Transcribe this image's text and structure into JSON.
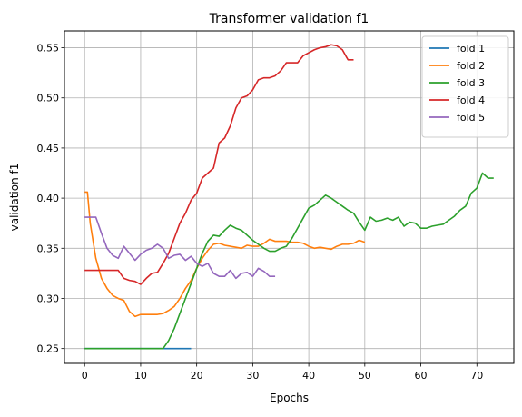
{
  "chart_data": {
    "type": "line",
    "title": "Transformer validation f1",
    "xlabel": "Epochs",
    "ylabel": "validation f1",
    "xlim": [
      -3.6,
      76.6
    ],
    "ylim": [
      0.2352,
      0.5668
    ],
    "x_ticks": [
      0,
      10,
      20,
      30,
      40,
      50,
      60,
      70
    ],
    "y_ticks": [
      0.25,
      0.3,
      0.35,
      0.4,
      0.45,
      0.5,
      0.55
    ],
    "y_tick_labels": [
      "0.25",
      "0.30",
      "0.35",
      "0.40",
      "0.45",
      "0.50",
      "0.55"
    ],
    "grid": true,
    "legend_position": "top-right",
    "series": [
      {
        "name": "fold 1",
        "color": "#1f77b4",
        "points": [
          [
            0,
            0.25
          ],
          [
            2,
            0.25
          ],
          [
            4,
            0.25
          ],
          [
            6,
            0.25
          ],
          [
            8,
            0.25
          ],
          [
            10,
            0.25
          ],
          [
            12,
            0.25
          ],
          [
            14,
            0.25
          ],
          [
            16,
            0.25
          ],
          [
            18,
            0.25
          ],
          [
            19,
            0.25
          ]
        ]
      },
      {
        "name": "fold 2",
        "color": "#ff7f0e",
        "points": [
          [
            0,
            0.406
          ],
          [
            0.5,
            0.406
          ],
          [
            1,
            0.375
          ],
          [
            2,
            0.34
          ],
          [
            3,
            0.32
          ],
          [
            4,
            0.31
          ],
          [
            5,
            0.303
          ],
          [
            6,
            0.3
          ],
          [
            7,
            0.298
          ],
          [
            8,
            0.287
          ],
          [
            9,
            0.282
          ],
          [
            10,
            0.284
          ],
          [
            11,
            0.284
          ],
          [
            12,
            0.284
          ],
          [
            13,
            0.284
          ],
          [
            14,
            0.285
          ],
          [
            15,
            0.288
          ],
          [
            16,
            0.292
          ],
          [
            17,
            0.3
          ],
          [
            18,
            0.31
          ],
          [
            19,
            0.318
          ],
          [
            20,
            0.33
          ],
          [
            21,
            0.34
          ],
          [
            22,
            0.348
          ],
          [
            23,
            0.354
          ],
          [
            24,
            0.355
          ],
          [
            25,
            0.353
          ],
          [
            26,
            0.352
          ],
          [
            27,
            0.351
          ],
          [
            28,
            0.35
          ],
          [
            29,
            0.353
          ],
          [
            30,
            0.352
          ],
          [
            31,
            0.352
          ],
          [
            32,
            0.355
          ],
          [
            33,
            0.359
          ],
          [
            34,
            0.357
          ],
          [
            35,
            0.357
          ],
          [
            36,
            0.357
          ],
          [
            37,
            0.356
          ],
          [
            38,
            0.356
          ],
          [
            39,
            0.355
          ],
          [
            40,
            0.352
          ],
          [
            41,
            0.35
          ],
          [
            42,
            0.351
          ],
          [
            43,
            0.35
          ],
          [
            44,
            0.349
          ],
          [
            45,
            0.352
          ],
          [
            46,
            0.354
          ],
          [
            47,
            0.354
          ],
          [
            48,
            0.355
          ],
          [
            49,
            0.358
          ],
          [
            50,
            0.356
          ]
        ]
      },
      {
        "name": "fold 3",
        "color": "#2ca02c",
        "points": [
          [
            0,
            0.25
          ],
          [
            2,
            0.25
          ],
          [
            4,
            0.25
          ],
          [
            6,
            0.25
          ],
          [
            8,
            0.25
          ],
          [
            10,
            0.25
          ],
          [
            12,
            0.25
          ],
          [
            14,
            0.25
          ],
          [
            15,
            0.258
          ],
          [
            16,
            0.27
          ],
          [
            17,
            0.285
          ],
          [
            18,
            0.3
          ],
          [
            19,
            0.315
          ],
          [
            20,
            0.33
          ],
          [
            21,
            0.345
          ],
          [
            22,
            0.357
          ],
          [
            23,
            0.363
          ],
          [
            24,
            0.362
          ],
          [
            25,
            0.368
          ],
          [
            26,
            0.373
          ],
          [
            27,
            0.37
          ],
          [
            28,
            0.368
          ],
          [
            29,
            0.363
          ],
          [
            30,
            0.358
          ],
          [
            31,
            0.354
          ],
          [
            32,
            0.35
          ],
          [
            33,
            0.347
          ],
          [
            34,
            0.347
          ],
          [
            35,
            0.35
          ],
          [
            36,
            0.352
          ],
          [
            37,
            0.36
          ],
          [
            38,
            0.37
          ],
          [
            39,
            0.38
          ],
          [
            40,
            0.39
          ],
          [
            41,
            0.393
          ],
          [
            42,
            0.398
          ],
          [
            43,
            0.403
          ],
          [
            44,
            0.4
          ],
          [
            45,
            0.396
          ],
          [
            46,
            0.392
          ],
          [
            47,
            0.388
          ],
          [
            48,
            0.385
          ],
          [
            49,
            0.376
          ],
          [
            50,
            0.368
          ],
          [
            51,
            0.381
          ],
          [
            52,
            0.377
          ],
          [
            53,
            0.378
          ],
          [
            54,
            0.38
          ],
          [
            55,
            0.378
          ],
          [
            56,
            0.381
          ],
          [
            57,
            0.372
          ],
          [
            58,
            0.376
          ],
          [
            59,
            0.375
          ],
          [
            60,
            0.37
          ],
          [
            61,
            0.37
          ],
          [
            62,
            0.372
          ],
          [
            63,
            0.373
          ],
          [
            64,
            0.374
          ],
          [
            65,
            0.378
          ],
          [
            66,
            0.382
          ],
          [
            67,
            0.388
          ],
          [
            68,
            0.392
          ],
          [
            69,
            0.405
          ],
          [
            70,
            0.41
          ],
          [
            71,
            0.425
          ],
          [
            72,
            0.42
          ],
          [
            73,
            0.42
          ]
        ]
      },
      {
        "name": "fold 4",
        "color": "#d62728",
        "points": [
          [
            0,
            0.328
          ],
          [
            2,
            0.328
          ],
          [
            4,
            0.328
          ],
          [
            6,
            0.328
          ],
          [
            7,
            0.32
          ],
          [
            8,
            0.318
          ],
          [
            9,
            0.317
          ],
          [
            10,
            0.314
          ],
          [
            11,
            0.32
          ],
          [
            12,
            0.325
          ],
          [
            13,
            0.326
          ],
          [
            14,
            0.335
          ],
          [
            15,
            0.345
          ],
          [
            16,
            0.36
          ],
          [
            17,
            0.375
          ],
          [
            18,
            0.385
          ],
          [
            19,
            0.398
          ],
          [
            20,
            0.405
          ],
          [
            21,
            0.42
          ],
          [
            22,
            0.425
          ],
          [
            23,
            0.43
          ],
          [
            24,
            0.455
          ],
          [
            25,
            0.46
          ],
          [
            26,
            0.472
          ],
          [
            27,
            0.49
          ],
          [
            28,
            0.5
          ],
          [
            29,
            0.502
          ],
          [
            30,
            0.508
          ],
          [
            31,
            0.518
          ],
          [
            32,
            0.52
          ],
          [
            33,
            0.52
          ],
          [
            34,
            0.522
          ],
          [
            35,
            0.527
          ],
          [
            36,
            0.535
          ],
          [
            37,
            0.535
          ],
          [
            38,
            0.535
          ],
          [
            39,
            0.542
          ],
          [
            40,
            0.545
          ],
          [
            41,
            0.548
          ],
          [
            42,
            0.55
          ],
          [
            43,
            0.551
          ],
          [
            44,
            0.553
          ],
          [
            45,
            0.552
          ],
          [
            46,
            0.548
          ],
          [
            47,
            0.538
          ],
          [
            48,
            0.538
          ]
        ]
      },
      {
        "name": "fold 5",
        "color": "#9467bd",
        "points": [
          [
            0,
            0.381
          ],
          [
            1,
            0.381
          ],
          [
            2,
            0.381
          ],
          [
            3,
            0.365
          ],
          [
            4,
            0.35
          ],
          [
            5,
            0.343
          ],
          [
            6,
            0.34
          ],
          [
            7,
            0.352
          ],
          [
            8,
            0.345
          ],
          [
            9,
            0.338
          ],
          [
            10,
            0.344
          ],
          [
            11,
            0.348
          ],
          [
            12,
            0.35
          ],
          [
            13,
            0.354
          ],
          [
            14,
            0.35
          ],
          [
            15,
            0.34
          ],
          [
            16,
            0.343
          ],
          [
            17,
            0.344
          ],
          [
            18,
            0.338
          ],
          [
            19,
            0.342
          ],
          [
            20,
            0.335
          ],
          [
            21,
            0.332
          ],
          [
            22,
            0.335
          ],
          [
            23,
            0.325
          ],
          [
            24,
            0.322
          ],
          [
            25,
            0.322
          ],
          [
            26,
            0.328
          ],
          [
            27,
            0.32
          ],
          [
            28,
            0.325
          ],
          [
            29,
            0.326
          ],
          [
            30,
            0.322
          ],
          [
            31,
            0.33
          ],
          [
            32,
            0.327
          ],
          [
            33,
            0.322
          ],
          [
            34,
            0.322
          ]
        ]
      }
    ]
  }
}
